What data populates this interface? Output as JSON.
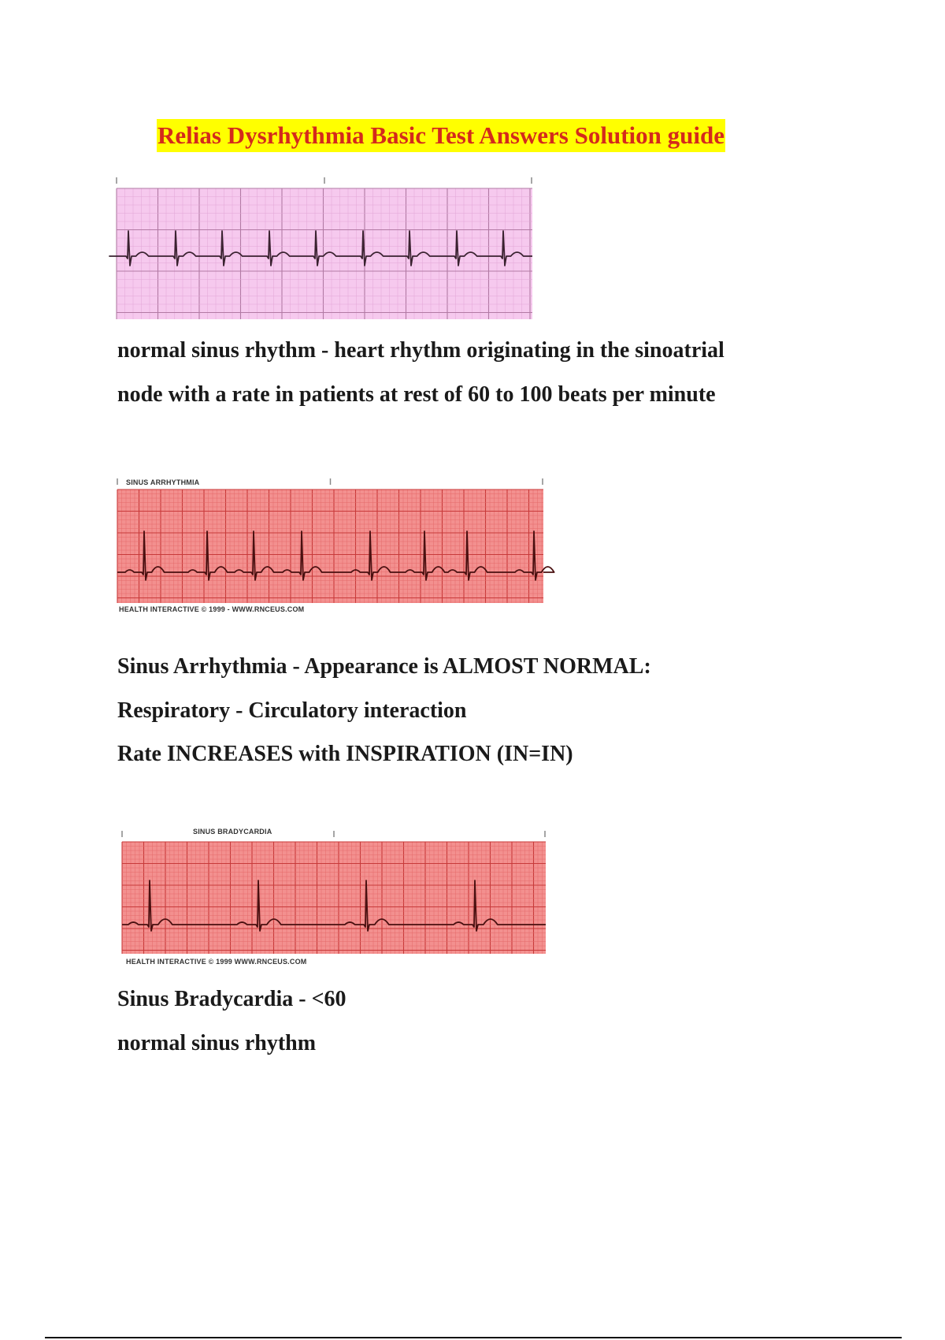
{
  "title": "Relias Dysrhythmia Basic Test Answers Solution guide",
  "colors": {
    "title_text": "#d42a1c",
    "title_highlight": "#ffff00",
    "strip1_paper": "#f6c9ee",
    "strip_red_paper": "#f3908f"
  },
  "strips": [
    {
      "label": "",
      "footer": ""
    },
    {
      "label": "SINUS ARRHYTHMIA",
      "footer": "HEALTH INTERACTIVE © 1999 - WWW.RNCEUS.COM"
    },
    {
      "label": "SINUS BRADYCARDIA",
      "footer": "HEALTH INTERACTIVE © 1999 WWW.RNCEUS.COM"
    }
  ],
  "sections": [
    {
      "lines": [
        "normal sinus rhythm - heart rhythm originating in the sinoatrial",
        "node with a rate in patients at rest of 60 to 100 beats per minute"
      ]
    },
    {
      "lines": [
        "Sinus Arrhythmia - Appearance is ALMOST NORMAL:",
        "Respiratory - Circulatory interaction",
        "Rate INCREASES with INSPIRATION (IN=IN)"
      ]
    },
    {
      "lines": [
        "Sinus Bradycardia - <60",
        "normal sinus rhythm"
      ]
    }
  ]
}
